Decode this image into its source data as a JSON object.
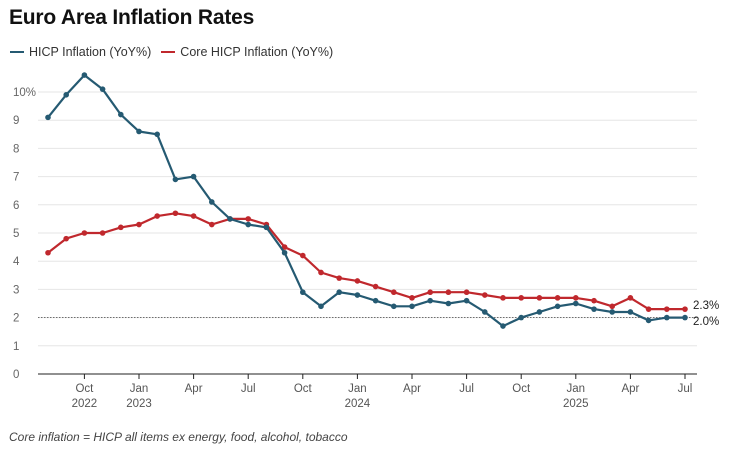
{
  "chart_data": {
    "type": "line",
    "title": "Euro Area Inflation Rates",
    "xlabel": "",
    "ylabel": "",
    "ylim": [
      0,
      10
    ],
    "y_ticks": [
      0,
      1,
      2,
      3,
      4,
      5,
      6,
      7,
      8,
      9,
      10
    ],
    "y_tick_labels": [
      "0",
      "1",
      "2",
      "3",
      "4",
      "5",
      "6",
      "7",
      "8",
      "9",
      "10%"
    ],
    "x": [
      "Aug 2022",
      "Sep 2022",
      "Oct 2022",
      "Nov 2022",
      "Dec 2022",
      "Jan 2023",
      "Feb 2023",
      "Mar 2023",
      "Apr 2023",
      "May 2023",
      "Jun 2023",
      "Jul 2023",
      "Aug 2023",
      "Sep 2023",
      "Oct 2023",
      "Nov 2023",
      "Dec 2023",
      "Jan 2024",
      "Feb 2024",
      "Mar 2024",
      "Apr 2024",
      "May 2024",
      "Jun 2024",
      "Jul 2024",
      "Aug 2024",
      "Sep 2024",
      "Oct 2024",
      "Nov 2024",
      "Dec 2024",
      "Jan 2025",
      "Feb 2025",
      "Mar 2025",
      "Apr 2025",
      "May 2025",
      "Jun 2025",
      "Jul 2025"
    ],
    "x_ticks": [
      {
        "index": 2,
        "label": "Oct",
        "year": "2022"
      },
      {
        "index": 5,
        "label": "Jan",
        "year": "2023"
      },
      {
        "index": 8,
        "label": "Apr",
        "year": ""
      },
      {
        "index": 11,
        "label": "Jul",
        "year": ""
      },
      {
        "index": 14,
        "label": "Oct",
        "year": ""
      },
      {
        "index": 17,
        "label": "Jan",
        "year": "2024"
      },
      {
        "index": 20,
        "label": "Apr",
        "year": ""
      },
      {
        "index": 23,
        "label": "Jul",
        "year": ""
      },
      {
        "index": 26,
        "label": "Oct",
        "year": ""
      },
      {
        "index": 29,
        "label": "Jan",
        "year": "2025"
      },
      {
        "index": 32,
        "label": "Apr",
        "year": ""
      },
      {
        "index": 35,
        "label": "Jul",
        "year": ""
      }
    ],
    "reference_line": 2.0,
    "series": [
      {
        "name": "HICP Inflation (YoY%)",
        "color": "#255a72",
        "end_label": "2.0%",
        "values": [
          9.1,
          9.9,
          10.6,
          10.1,
          9.2,
          8.6,
          8.5,
          6.9,
          7.0,
          6.1,
          5.5,
          5.3,
          5.2,
          4.3,
          2.9,
          2.4,
          2.9,
          2.8,
          2.6,
          2.4,
          2.4,
          2.6,
          2.5,
          2.6,
          2.2,
          1.7,
          2.0,
          2.2,
          2.4,
          2.5,
          2.3,
          2.2,
          2.2,
          1.9,
          2.0,
          2.0
        ]
      },
      {
        "name": "Core HICP Inflation (YoY%)",
        "color": "#c0282d",
        "end_label": "2.3%",
        "values": [
          4.3,
          4.8,
          5.0,
          5.0,
          5.2,
          5.3,
          5.6,
          5.7,
          5.6,
          5.3,
          5.5,
          5.5,
          5.3,
          4.5,
          4.2,
          3.6,
          3.4,
          3.3,
          3.1,
          2.9,
          2.7,
          2.9,
          2.9,
          2.9,
          2.8,
          2.7,
          2.7,
          2.7,
          2.7,
          2.7,
          2.6,
          2.4,
          2.7,
          2.3,
          2.3,
          2.3
        ]
      }
    ]
  },
  "legend": {
    "hicp_label": "HICP Inflation (YoY%)",
    "core_label": "Core HICP Inflation (YoY%)"
  },
  "footnote": "Core inflation = HICP all items ex energy, food, alcohol, tobacco"
}
